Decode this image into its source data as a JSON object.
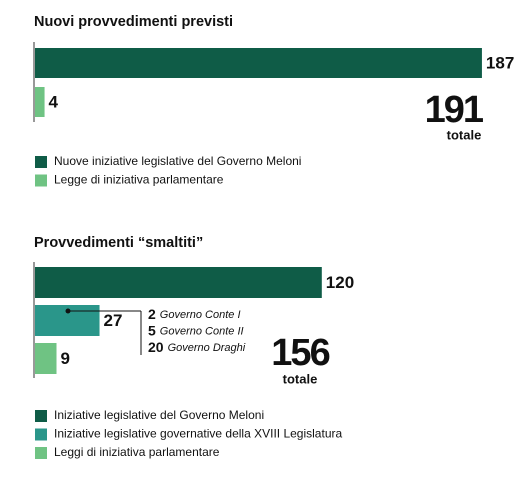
{
  "chart_data": [
    {
      "type": "bar",
      "title": "Nuovi provvedimenti previsti",
      "series": [
        {
          "name": "Nuove iniziative legislative del Governo Meloni",
          "color": "#0f5c47",
          "values": [
            187
          ]
        },
        {
          "name": "Legge di iniziativa parlamentare",
          "color": "#6fc383",
          "values": [
            4
          ]
        }
      ],
      "total": 191,
      "total_label": "totale"
    },
    {
      "type": "bar",
      "title": "Provvedimenti “smaltiti”",
      "series": [
        {
          "name": "Iniziative legislative del Governo Meloni",
          "color": "#0f5c47",
          "values": [
            120
          ]
        },
        {
          "name": "Iniziative legislative governative della XVIII Legislatura",
          "color": "#2a968a",
          "values": [
            27
          ]
        },
        {
          "name": "Leggi di iniziativa parlamentare",
          "color": "#6fc383",
          "values": [
            9
          ]
        }
      ],
      "breakdown": [
        {
          "value": 2,
          "label": "Governo Conte I"
        },
        {
          "value": 5,
          "label": "Governo Conte II"
        },
        {
          "value": 20,
          "label": "Governo Draghi"
        }
      ],
      "total": 156,
      "total_label": "totale"
    }
  ]
}
